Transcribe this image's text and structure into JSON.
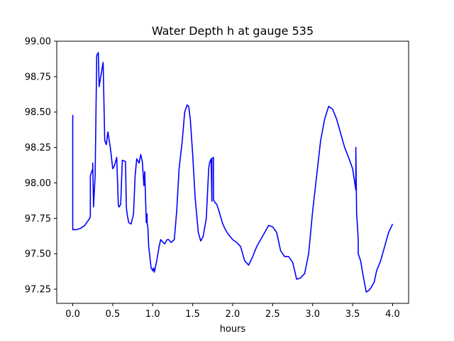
{
  "chart_data": {
    "type": "line",
    "title": "Water Depth h at gauge 535",
    "xlabel": "hours",
    "ylabel": "",
    "xlim": [
      -0.2,
      4.2
    ],
    "ylim": [
      97.15,
      99.0
    ],
    "x_ticks": [
      0.0,
      0.5,
      1.0,
      1.5,
      2.0,
      2.5,
      3.0,
      3.5,
      4.0
    ],
    "x_tick_labels": [
      "0.0",
      "0.5",
      "1.0",
      "1.5",
      "2.0",
      "2.5",
      "3.0",
      "3.5",
      "4.0"
    ],
    "y_ticks": [
      97.25,
      97.5,
      97.75,
      98.0,
      98.25,
      98.5,
      98.75,
      99.0
    ],
    "y_tick_labels": [
      "97.25",
      "97.50",
      "97.75",
      "98.00",
      "98.25",
      "98.50",
      "98.75",
      "99.00"
    ],
    "grid": false,
    "legend": "none",
    "series": [
      {
        "color": "#0000ff",
        "x": [
          0.0,
          0.0,
          0.0,
          0.005,
          0.05,
          0.1,
          0.15,
          0.2,
          0.22,
          0.22,
          0.25,
          0.25,
          0.26,
          0.28,
          0.3,
          0.32,
          0.33,
          0.35,
          0.38,
          0.4,
          0.42,
          0.44,
          0.47,
          0.5,
          0.52,
          0.55,
          0.57,
          0.58,
          0.6,
          0.62,
          0.66,
          0.67,
          0.68,
          0.7,
          0.73,
          0.76,
          0.78,
          0.8,
          0.83,
          0.85,
          0.87,
          0.89,
          0.9,
          0.92,
          0.93,
          0.93,
          0.94,
          0.95,
          0.98,
          1.0,
          1.01,
          1.02,
          1.05,
          1.08,
          1.1,
          1.13,
          1.15,
          1.18,
          1.2,
          1.23,
          1.27,
          1.3,
          1.33,
          1.37,
          1.4,
          1.43,
          1.45,
          1.47,
          1.5,
          1.53,
          1.57,
          1.6,
          1.63,
          1.67,
          1.7,
          1.71,
          1.73,
          1.74,
          1.74,
          1.76,
          1.76,
          1.78,
          1.8,
          1.83,
          1.87,
          1.9,
          1.93,
          1.97,
          2.0,
          2.05,
          2.1,
          2.15,
          2.2,
          2.25,
          2.3,
          2.35,
          2.4,
          2.45,
          2.5,
          2.55,
          2.6,
          2.65,
          2.7,
          2.75,
          2.8,
          2.85,
          2.9,
          2.95,
          3.0,
          3.05,
          3.1,
          3.15,
          3.2,
          3.25,
          3.3,
          3.35,
          3.4,
          3.45,
          3.5,
          3.54,
          3.54,
          3.55,
          3.56,
          3.57,
          3.57,
          3.6,
          3.63,
          3.67,
          3.7,
          3.73,
          3.77,
          3.8,
          3.85,
          3.9,
          3.95,
          4.0
        ],
        "y": [
          98.48,
          98.0,
          97.67,
          97.67,
          97.67,
          97.68,
          97.7,
          97.74,
          97.76,
          98.05,
          98.1,
          98.14,
          97.83,
          98.05,
          98.9,
          98.92,
          98.68,
          98.75,
          98.85,
          98.3,
          98.27,
          98.36,
          98.25,
          98.1,
          98.12,
          98.18,
          97.84,
          97.83,
          97.85,
          98.16,
          98.15,
          97.83,
          97.78,
          97.72,
          97.71,
          97.78,
          98.05,
          98.17,
          98.14,
          98.2,
          98.15,
          97.98,
          98.08,
          97.72,
          97.78,
          97.72,
          97.68,
          97.55,
          97.4,
          97.38,
          97.4,
          97.37,
          97.45,
          97.55,
          97.6,
          97.58,
          97.57,
          97.6,
          97.6,
          97.58,
          97.6,
          97.8,
          98.1,
          98.3,
          98.5,
          98.55,
          98.54,
          98.45,
          98.2,
          97.9,
          97.65,
          97.59,
          97.62,
          97.75,
          98.1,
          98.14,
          98.17,
          97.87,
          98.17,
          98.18,
          97.88,
          97.86,
          97.85,
          97.8,
          97.72,
          97.68,
          97.65,
          97.62,
          97.6,
          97.58,
          97.55,
          97.45,
          97.42,
          97.48,
          97.55,
          97.6,
          97.65,
          97.7,
          97.69,
          97.65,
          97.52,
          97.48,
          97.48,
          97.44,
          97.32,
          97.33,
          97.36,
          97.5,
          97.8,
          98.05,
          98.3,
          98.45,
          98.54,
          98.52,
          98.45,
          98.35,
          98.25,
          98.18,
          98.1,
          97.95,
          98.25,
          97.78,
          97.7,
          97.6,
          97.5,
          97.45,
          97.35,
          97.23,
          97.24,
          97.26,
          97.3,
          97.38,
          97.45,
          97.55,
          97.65,
          97.71
        ]
      }
    ]
  }
}
